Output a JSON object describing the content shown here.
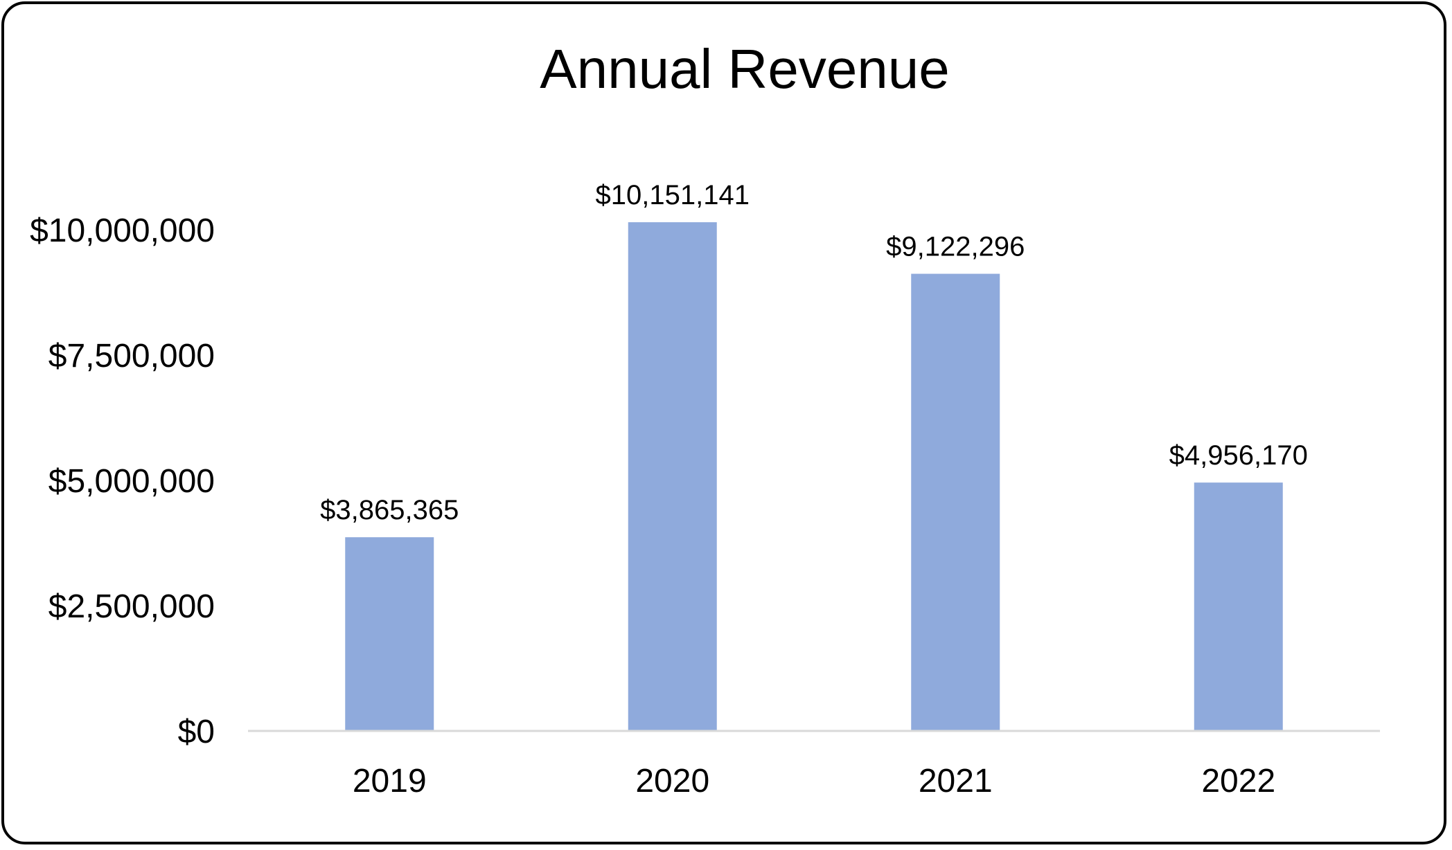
{
  "chart_data": {
    "type": "bar",
    "title": "Annual Revenue",
    "xlabel": "",
    "ylabel": "",
    "categories": [
      "2019",
      "2020",
      "2021",
      "2022"
    ],
    "values": [
      3865365,
      10151141,
      9122296,
      4956170
    ],
    "data_labels": [
      "$3,865,365",
      "$10,151,141",
      "$9,122,296",
      "$4,956,170"
    ],
    "ylim": [
      0,
      10000000
    ],
    "y_ticks": [
      0,
      2500000,
      5000000,
      7500000,
      10000000
    ],
    "y_tick_labels": [
      "$0",
      "$2,500,000",
      "$5,000,000",
      "$7,500,000",
      "$10,000,000"
    ],
    "grid": false,
    "legend": "none",
    "bar_color": "#8faadc",
    "axis_color": "#d9d9d9"
  }
}
